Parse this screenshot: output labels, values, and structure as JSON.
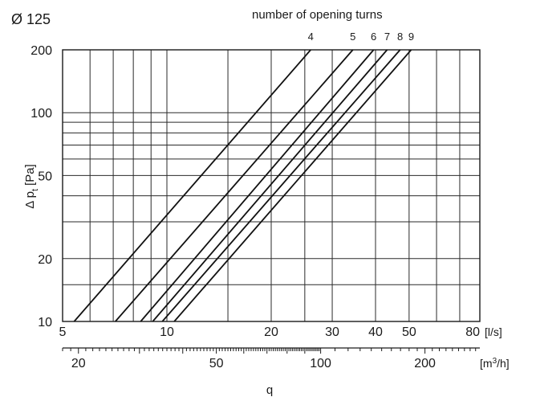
{
  "chart_data": {
    "type": "line",
    "title": "Ø 125",
    "subtitle": "number of opening turns",
    "xlabel": "q",
    "ylabel_main": "Δ p",
    "ylabel_sub": "t",
    "ylabel_unit": "[Pa]",
    "x_scale": "log",
    "y_scale": "log",
    "xlim": [
      5,
      80
    ],
    "ylim": [
      10,
      200
    ],
    "x_unit_primary": "[l/s]",
    "x_unit_secondary_base": "[m",
    "x_unit_secondary_sup": "3",
    "x_unit_secondary_end": "/h]",
    "x_ticks_primary": [
      "5",
      "10",
      "20",
      "30",
      "40",
      "50",
      "80"
    ],
    "x_ticks_secondary": [
      "20",
      "50",
      "100",
      "200"
    ],
    "y_ticks": [
      "10",
      "20",
      "50",
      "100",
      "200"
    ],
    "grid": true,
    "series": [
      {
        "name": "4",
        "points": [
          [
            5.4,
            10
          ],
          [
            26,
            200
          ]
        ]
      },
      {
        "name": "5",
        "points": [
          [
            7.1,
            10
          ],
          [
            34.4,
            200
          ]
        ]
      },
      {
        "name": "6",
        "points": [
          [
            8.4,
            10
          ],
          [
            39.5,
            200
          ]
        ]
      },
      {
        "name": "7",
        "points": [
          [
            9.1,
            10
          ],
          [
            43.2,
            200
          ]
        ]
      },
      {
        "name": "8",
        "points": [
          [
            9.7,
            10
          ],
          [
            47.1,
            200
          ]
        ]
      },
      {
        "name": "9",
        "points": [
          [
            10.5,
            10
          ],
          [
            50.7,
            200
          ]
        ]
      }
    ]
  }
}
